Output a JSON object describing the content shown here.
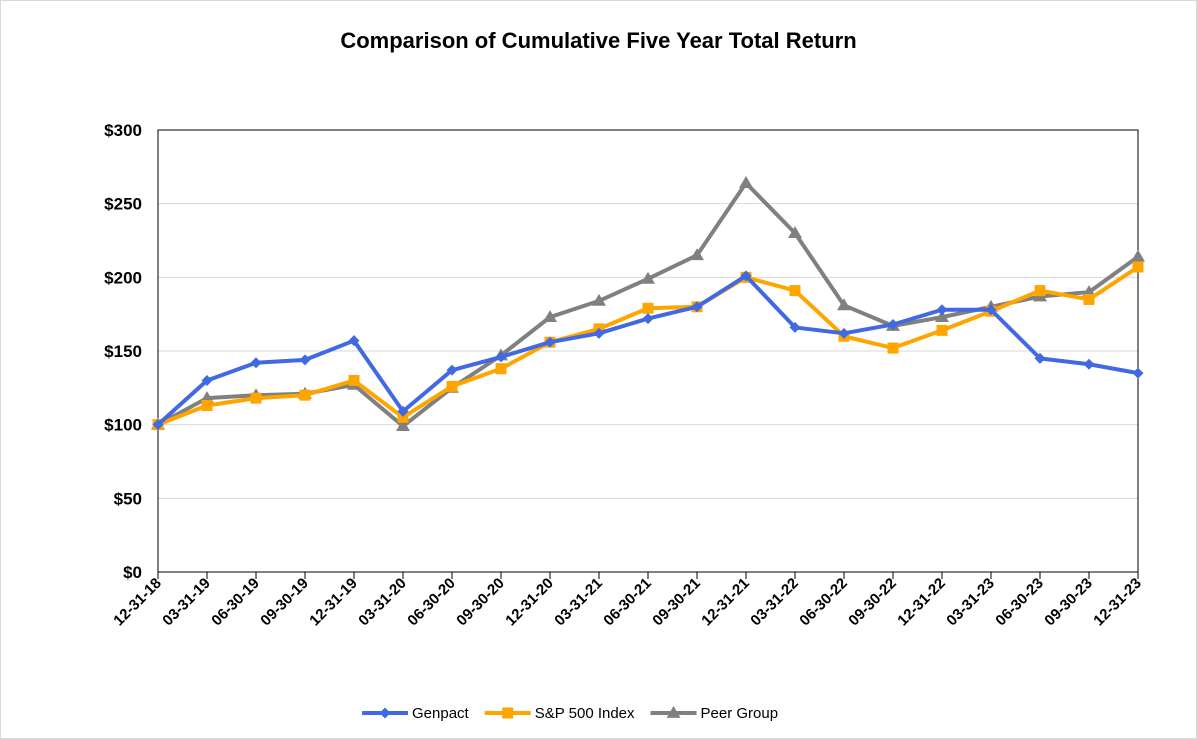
{
  "chart_data": {
    "type": "line",
    "title": "Comparison of Cumulative Five Year Total Return",
    "xlabel": "",
    "ylabel": "",
    "categories": [
      "12-31-18",
      "03-31-19",
      "06-30-19",
      "09-30-19",
      "12-31-19",
      "03-31-20",
      "06-30-20",
      "09-30-20",
      "12-31-20",
      "03-31-21",
      "06-30-21",
      "09-30-21",
      "12-31-21",
      "03-31-22",
      "06-30-22",
      "09-30-22",
      "12-31-22",
      "03-31-23",
      "06-30-23",
      "09-30-23",
      "12-31-23"
    ],
    "ylim": [
      0,
      300
    ],
    "yticks": [
      0,
      50,
      100,
      150,
      200,
      250,
      300
    ],
    "ytick_labels": [
      "$0",
      "$50",
      "$100",
      "$150",
      "$200",
      "$250",
      "$300"
    ],
    "grid": true,
    "legend_position": "bottom",
    "series": [
      {
        "name": "Genpact",
        "color": "#4169e1",
        "marker": "diamond",
        "values": [
          100,
          130,
          142,
          144,
          157,
          109,
          137,
          146,
          156,
          162,
          172,
          180,
          201,
          166,
          162,
          168,
          178,
          178,
          145,
          141,
          135
        ]
      },
      {
        "name": "S&P 500 Index",
        "color": "#ffa500",
        "marker": "square",
        "values": [
          100,
          113,
          118,
          120,
          130,
          105,
          126,
          138,
          156,
          165,
          179,
          180,
          200,
          191,
          160,
          152,
          164,
          177,
          191,
          185,
          207
        ]
      },
      {
        "name": "Peer Group",
        "color": "#808080",
        "marker": "triangle",
        "values": [
          100,
          118,
          120,
          121,
          127,
          99,
          125,
          147,
          173,
          184,
          199,
          215,
          264,
          230,
          181,
          167,
          173,
          180,
          187,
          190,
          214
        ]
      }
    ]
  }
}
